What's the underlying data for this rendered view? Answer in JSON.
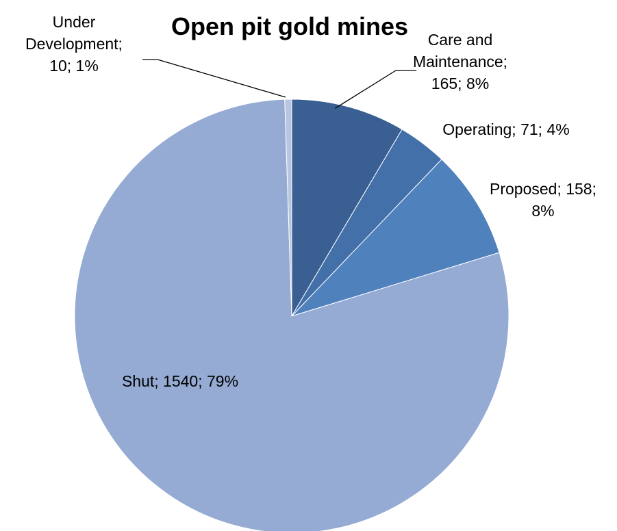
{
  "chart_data": {
    "type": "pie",
    "title": "Open pit gold mines",
    "slices": [
      {
        "name": "Care and Maintenance",
        "value": 165,
        "percent": "8%",
        "color": "#3a5f93",
        "label_lines": [
          "Care and",
          "Maintenance;",
          "165; 8%"
        ]
      },
      {
        "name": "Operating",
        "value": 71,
        "percent": "4%",
        "color": "#4370a8",
        "label_lines": [
          "Operating; 71; 4%"
        ]
      },
      {
        "name": "Proposed",
        "value": 158,
        "percent": "8%",
        "color": "#4f81bd",
        "label_lines": [
          "Proposed; 158;",
          "8%"
        ]
      },
      {
        "name": "Shut",
        "value": 1540,
        "percent": "79%",
        "color": "#95abd3",
        "label_lines": [
          "Shut; 1540; 79%"
        ]
      },
      {
        "name": "Under Development",
        "value": 10,
        "percent": "1%",
        "color": "#b9c6e0",
        "label_lines": [
          "Under",
          "Development;",
          "10; 1%"
        ]
      }
    ],
    "start_angle_deg": 0,
    "direction": "clockwise",
    "legend": "none",
    "labels": "data-labels-with-leader-lines"
  }
}
